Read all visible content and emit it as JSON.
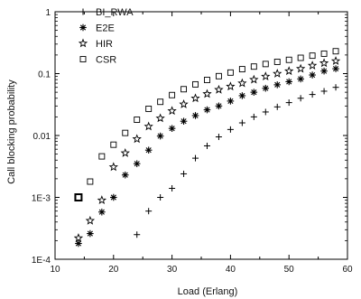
{
  "chart_data": {
    "type": "scatter",
    "title": "",
    "xlabel": "Load (Erlang)",
    "ylabel": "Call blocking probability",
    "xlim": [
      10,
      60
    ],
    "ylim": [
      0.0001,
      1
    ],
    "yscale": "log",
    "x_ticks": [
      10,
      20,
      30,
      40,
      50,
      60
    ],
    "x_tick_labels": [
      "10",
      "20",
      "30",
      "40",
      "50",
      "60"
    ],
    "y_ticks": [
      0.0001,
      0.001,
      0.01,
      0.1,
      1
    ],
    "y_tick_labels": [
      "1E-4",
      "1E-3",
      "0.01",
      "0.1",
      "1"
    ],
    "grid": false,
    "legend_position": "top-left",
    "series": [
      {
        "name": "BI_RWA",
        "marker": "plus",
        "color": "#000000",
        "points": [
          [
            24,
            0.00025
          ],
          [
            26,
            0.0006
          ],
          [
            28,
            0.001
          ],
          [
            30,
            0.0014
          ],
          [
            32,
            0.0024
          ],
          [
            34,
            0.0043
          ],
          [
            36,
            0.0068
          ],
          [
            38,
            0.0095
          ],
          [
            40,
            0.0125
          ],
          [
            42,
            0.016
          ],
          [
            44,
            0.02
          ],
          [
            46,
            0.024
          ],
          [
            48,
            0.029
          ],
          [
            50,
            0.034
          ],
          [
            52,
            0.04
          ],
          [
            54,
            0.046
          ],
          [
            56,
            0.052
          ],
          [
            58,
            0.06
          ]
        ]
      },
      {
        "name": "E2E",
        "marker": "asterisk",
        "color": "#000000",
        "points": [
          [
            14,
            0.00018
          ],
          [
            16,
            0.00026
          ],
          [
            18,
            0.00058
          ],
          [
            20,
            0.001
          ],
          [
            22,
            0.0023
          ],
          [
            24,
            0.0035
          ],
          [
            26,
            0.0058
          ],
          [
            28,
            0.0098
          ],
          [
            30,
            0.013
          ],
          [
            32,
            0.017
          ],
          [
            34,
            0.021
          ],
          [
            36,
            0.026
          ],
          [
            38,
            0.03
          ],
          [
            40,
            0.036
          ],
          [
            42,
            0.044
          ],
          [
            44,
            0.05
          ],
          [
            46,
            0.058
          ],
          [
            48,
            0.066
          ],
          [
            50,
            0.074
          ],
          [
            52,
            0.082
          ],
          [
            54,
            0.095
          ],
          [
            56,
            0.11
          ],
          [
            58,
            0.12
          ]
        ]
      },
      {
        "name": "HIR",
        "marker": "star",
        "color": "#000000",
        "points": [
          [
            14,
            0.00022
          ],
          [
            16,
            0.00042
          ],
          [
            18,
            0.0009
          ],
          [
            20,
            0.0031
          ],
          [
            22,
            0.0052
          ],
          [
            24,
            0.0088
          ],
          [
            26,
            0.014
          ],
          [
            28,
            0.019
          ],
          [
            30,
            0.025
          ],
          [
            32,
            0.032
          ],
          [
            34,
            0.04
          ],
          [
            36,
            0.047
          ],
          [
            38,
            0.055
          ],
          [
            40,
            0.062
          ],
          [
            42,
            0.07
          ],
          [
            44,
            0.08
          ],
          [
            46,
            0.09
          ],
          [
            48,
            0.1
          ],
          [
            50,
            0.11
          ],
          [
            52,
            0.12
          ],
          [
            54,
            0.135
          ],
          [
            56,
            0.148
          ],
          [
            58,
            0.16
          ]
        ]
      },
      {
        "name": "CSR",
        "marker": "square",
        "color": "#000000",
        "points": [
          [
            14,
            0.001
          ],
          [
            16,
            0.0018
          ],
          [
            18,
            0.0046
          ],
          [
            20,
            0.0071
          ],
          [
            22,
            0.011
          ],
          [
            24,
            0.018
          ],
          [
            26,
            0.027
          ],
          [
            28,
            0.035
          ],
          [
            30,
            0.045
          ],
          [
            32,
            0.056
          ],
          [
            34,
            0.067
          ],
          [
            36,
            0.079
          ],
          [
            38,
            0.091
          ],
          [
            40,
            0.104
          ],
          [
            42,
            0.118
          ],
          [
            44,
            0.13
          ],
          [
            46,
            0.143
          ],
          [
            48,
            0.155
          ],
          [
            50,
            0.167
          ],
          [
            52,
            0.18
          ],
          [
            54,
            0.195
          ],
          [
            56,
            0.21
          ],
          [
            58,
            0.23
          ]
        ]
      }
    ]
  }
}
